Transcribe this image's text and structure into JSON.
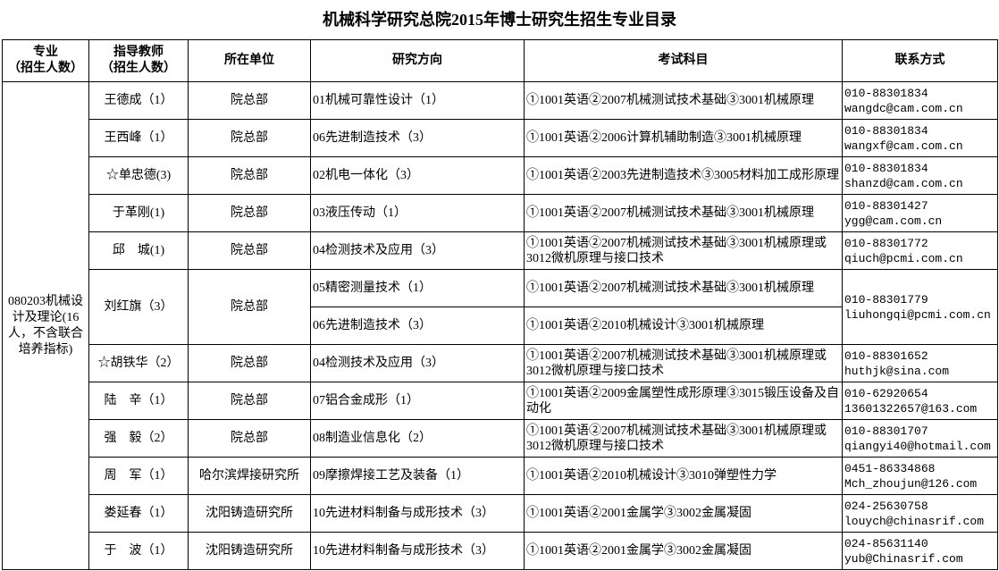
{
  "title": "机械科学研究总院2015年博士研究生招生专业目录",
  "headers": [
    "专业\n（招生人数）",
    "指导教师\n（招生人数）",
    "所在单位",
    "研究方向",
    "考试科目",
    "联系方式"
  ],
  "major": "080203机械设计及理论(16人，不含联合培养指标)",
  "rows": [
    {
      "teacher": "王德成（1）",
      "unit": "院总部",
      "directions": [
        {
          "dir": "01机械可靠性设计（1）",
          "exam": "①1001英语②2007机械测试技术基础③3001机械原理"
        }
      ],
      "phone": "010-88301834",
      "email": "wangdc@cam.com.cn"
    },
    {
      "teacher": "王西峰（1）",
      "unit": "院总部",
      "directions": [
        {
          "dir": "06先进制造技术（3）",
          "exam": "①1001英语②2006计算机辅助制造③3001机械原理"
        }
      ],
      "phone": "010-88301834",
      "email": "wangxf@cam.com.cn"
    },
    {
      "teacher": "☆单忠德(3)",
      "unit": "院总部",
      "directions": [
        {
          "dir": "02机电一体化（3）",
          "exam": "①1001英语②2003先进制造技术③3005材料加工成形原理"
        }
      ],
      "phone": "010-88301834",
      "email": "shanzd@cam.com.cn"
    },
    {
      "teacher": "于革刚(1)",
      "unit": "院总部",
      "directions": [
        {
          "dir": "03液压传动（1）",
          "exam": "①1001英语②2007机械测试技术基础③3001机械原理"
        }
      ],
      "phone": "010-88301427",
      "email": "ygg@cam.com.cn"
    },
    {
      "teacher": "邱　城(1)",
      "unit": "院总部",
      "directions": [
        {
          "dir": "04检测技术及应用（3）",
          "exam": "①1001英语②2007机械测试技术基础③3001机械原理或3012微机原理与接口技术"
        }
      ],
      "phone": "010-88301772",
      "email": "qiuch@pcmi.com.cn"
    },
    {
      "teacher": "刘红旗（3）",
      "unit": "院总部",
      "directions": [
        {
          "dir": "05精密测量技术（1）",
          "exam": "①1001英语②2007机械测试技术基础③3001机械原理"
        },
        {
          "dir": "06先进制造技术（3）",
          "exam": "①1001英语②2010机械设计③3001机械原理"
        }
      ],
      "phone": "010-88301779",
      "email": "liuhongqi@pcmi.com.cn"
    },
    {
      "teacher": "☆胡铁华（2）",
      "unit": "院总部",
      "directions": [
        {
          "dir": "04检测技术及应用（3）",
          "exam": "①1001英语②2007机械测试技术基础③3001机械原理或3012微机原理与接口技术"
        }
      ],
      "phone": "010-88301652",
      "email": "huthjk@sina.com"
    },
    {
      "teacher": "陆　辛（1）",
      "unit": "院总部",
      "directions": [
        {
          "dir": "07铝合金成形（1）",
          "exam": "①1001英语②2009金属塑性成形原理③3015锻压设备及自动化"
        }
      ],
      "phone": "010-62920654",
      "email": "13601322657@163.com"
    },
    {
      "teacher": "强　毅（2）",
      "unit": "院总部",
      "directions": [
        {
          "dir": "08制造业信息化（2）",
          "exam": "①1001英语②2007机械测试技术基础③3001机械原理或3012微机原理与接口技术"
        }
      ],
      "phone": "010-88301707",
      "email": "qiangyi40@hotmail.com"
    },
    {
      "teacher": "周　军（1）",
      "unit": "哈尔滨焊接研究所",
      "directions": [
        {
          "dir": "09摩擦焊接工艺及装备（1）",
          "exam": "①1001英语②2010机械设计③3010弹塑性力学"
        }
      ],
      "phone": "0451-86334868",
      "email": "Mch_zhoujun@126.com"
    },
    {
      "teacher": "娄延春（1）",
      "unit": "沈阳铸造研究所",
      "directions": [
        {
          "dir": "10先进材料制备与成形技术（3）",
          "exam": "①1001英语②2001金属学③3002金属凝固"
        }
      ],
      "phone": "024-25630758",
      "email": "louych@chinasrif.com"
    },
    {
      "teacher": "于　波（1）",
      "unit": "沈阳铸造研究所",
      "directions": [
        {
          "dir": "10先进材料制备与成形技术（3）",
          "exam": "①1001英语②2001金属学③3002金属凝固"
        }
      ],
      "phone": "024-85631140",
      "email": "yub@Chinasrif.com"
    }
  ]
}
